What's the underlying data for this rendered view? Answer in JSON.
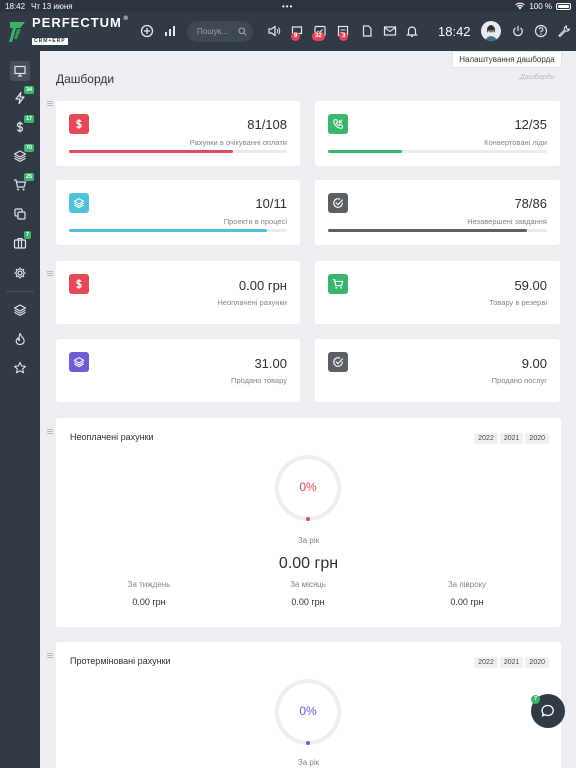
{
  "status_bar": {
    "time": "18:42",
    "date": "Чт 13 июня",
    "battery": "100 %"
  },
  "brand": {
    "name": "PERFECTUM",
    "tagline": "CRM+ERP",
    "reg": "®",
    "color": "#3bb56d"
  },
  "topnav": {
    "search_placeholder": "Пошук...",
    "badges": {
      "chat": "9",
      "tasks": "32",
      "notes": "3"
    },
    "clock": "18:42"
  },
  "sidebar": {
    "badges": {
      "leads": "34",
      "invoices": "17",
      "projects": "70",
      "orders": "25",
      "warehouse": "7"
    }
  },
  "page": {
    "settings_button": "Налаштування дашборда",
    "title": "Дашборди",
    "breadcrumb": "Дашборди"
  },
  "kpis": [
    {
      "value": "81/108",
      "label": "Рахунки в очікуванні оплати",
      "icon": "dollar-icon",
      "color": "#e4495a",
      "progress": 0.75
    },
    {
      "value": "12/35",
      "label": "Конвертовані ліди",
      "icon": "phone-incoming-icon",
      "color": "#3bb56d",
      "progress": 0.34
    },
    {
      "value": "10/11",
      "label": "Проекти в процесі",
      "icon": "layers-icon",
      "color": "#4fc2d8",
      "progress": 0.91
    },
    {
      "value": "78/86",
      "label": "Незавершені завдання",
      "icon": "check-circle-icon",
      "color": "#5a5f66",
      "progress": 0.91
    },
    {
      "value": "0.00 грн",
      "label": "Неоплачені рахунки",
      "icon": "dollar-icon",
      "color": "#e4495a"
    },
    {
      "value": "59.00",
      "label": "Товару в резерві",
      "icon": "cart-icon",
      "color": "#3bb56d"
    },
    {
      "value": "31.00",
      "label": "Продано товару",
      "icon": "layers-icon",
      "color": "#6a5ed2"
    },
    {
      "value": "9.00",
      "label": "Продано послуг",
      "icon": "check-circle-icon",
      "color": "#5a5f66"
    }
  ],
  "panels": [
    {
      "title": "Неоплачені рахунки",
      "years": [
        "2022",
        "2021",
        "2020"
      ],
      "percent": "0%",
      "percent_color": "#e4495a",
      "caption": "За рік",
      "amount": "0.00 грн",
      "subs": [
        {
          "label": "За тиждень",
          "value": "0.00 грн"
        },
        {
          "label": "За місяць",
          "value": "0.00 грн"
        },
        {
          "label": "За півроку",
          "value": "0.00 грн"
        }
      ]
    },
    {
      "title": "Протерміновані рахунки",
      "years": [
        "2022",
        "2021",
        "2020"
      ],
      "percent": "0%",
      "percent_color": "#6a5ed2",
      "caption": "За рік"
    }
  ],
  "chat": {
    "badge": "7"
  }
}
